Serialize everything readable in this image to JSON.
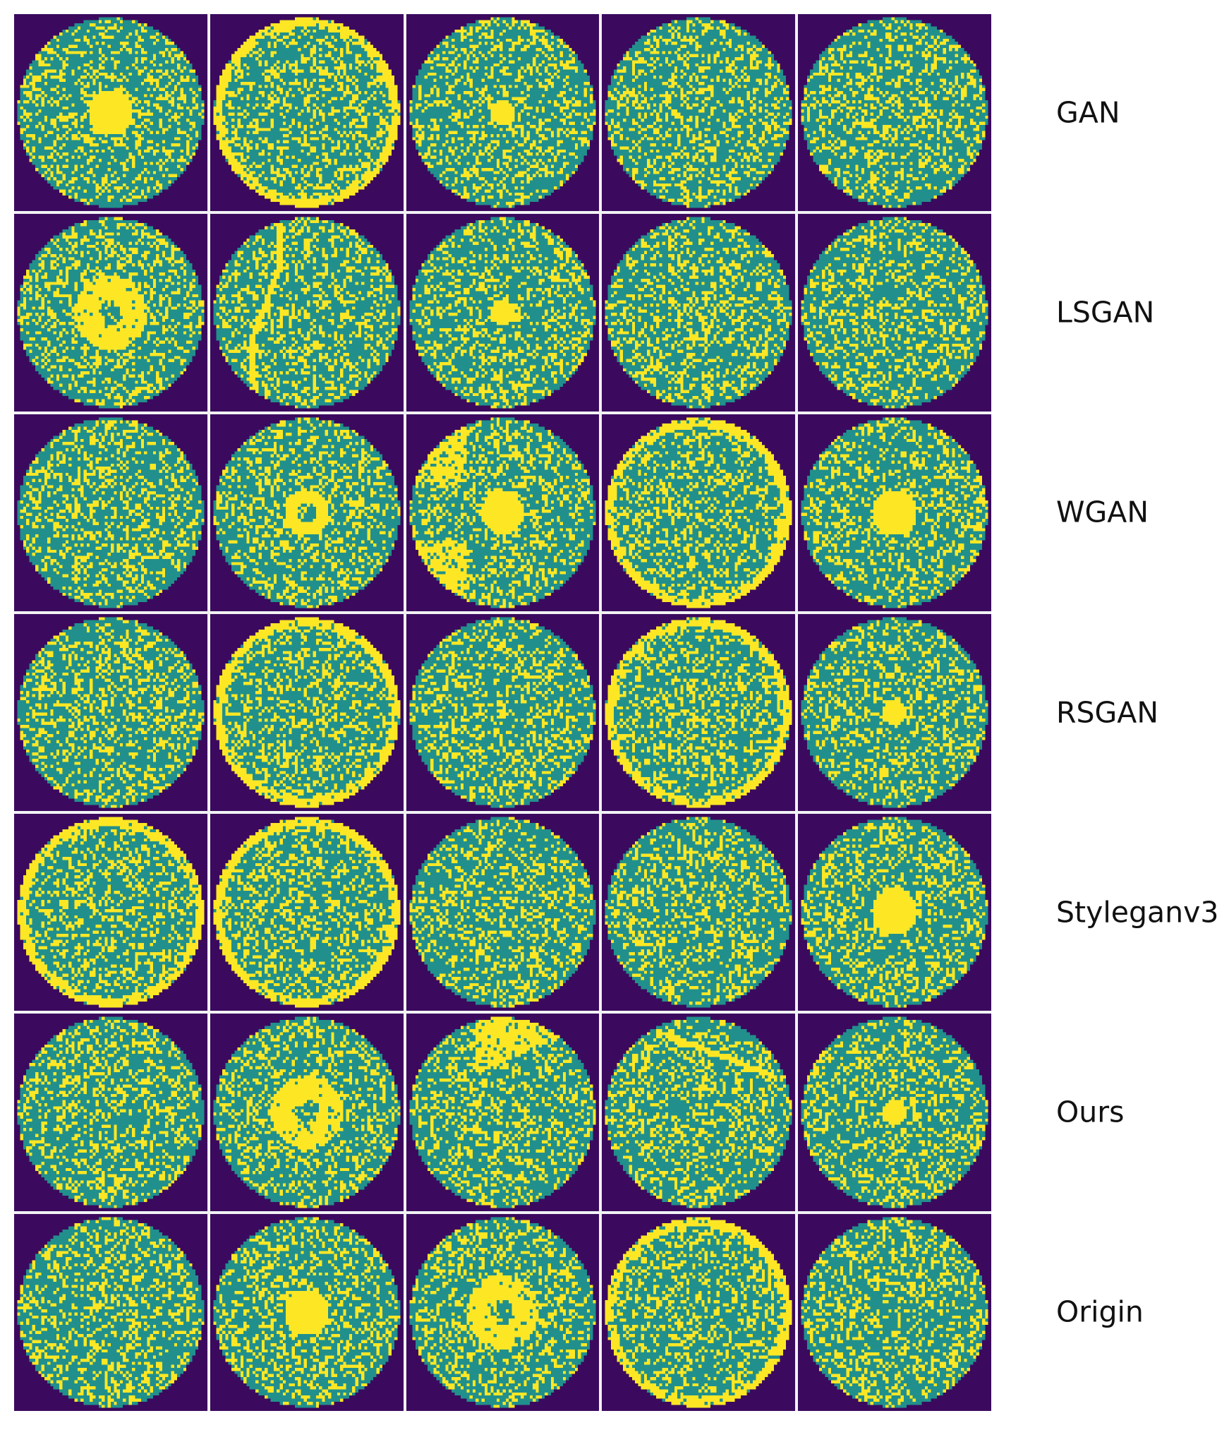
{
  "colors": {
    "background": "#3b0a5e",
    "wafer": "#21908c",
    "defect": "#fde725",
    "gap": "#f2f2f5"
  },
  "rows": [
    {
      "label": "GAN",
      "patterns": [
        "center",
        "edge-ring",
        "center-small",
        "none",
        "none"
      ]
    },
    {
      "label": "LSGAN",
      "patterns": [
        "donut",
        "scratch",
        "center-small",
        "none",
        "none"
      ]
    },
    {
      "label": "WGAN",
      "patterns": [
        "none",
        "donut-small",
        "center-loc",
        "edge-ring",
        "center"
      ]
    },
    {
      "label": "RSGAN",
      "patterns": [
        "none",
        "edge-ring",
        "none",
        "edge-ring",
        "center-small"
      ]
    },
    {
      "label": "Styleganv3",
      "patterns": [
        "edge-ring",
        "edge-ring",
        "none",
        "none",
        "center"
      ]
    },
    {
      "label": "Ours",
      "patterns": [
        "none",
        "donut",
        "loc-top",
        "scratch-top",
        "center-small"
      ]
    },
    {
      "label": "Origin",
      "patterns": [
        "none",
        "center",
        "donut",
        "edge-ring",
        "none"
      ]
    }
  ]
}
